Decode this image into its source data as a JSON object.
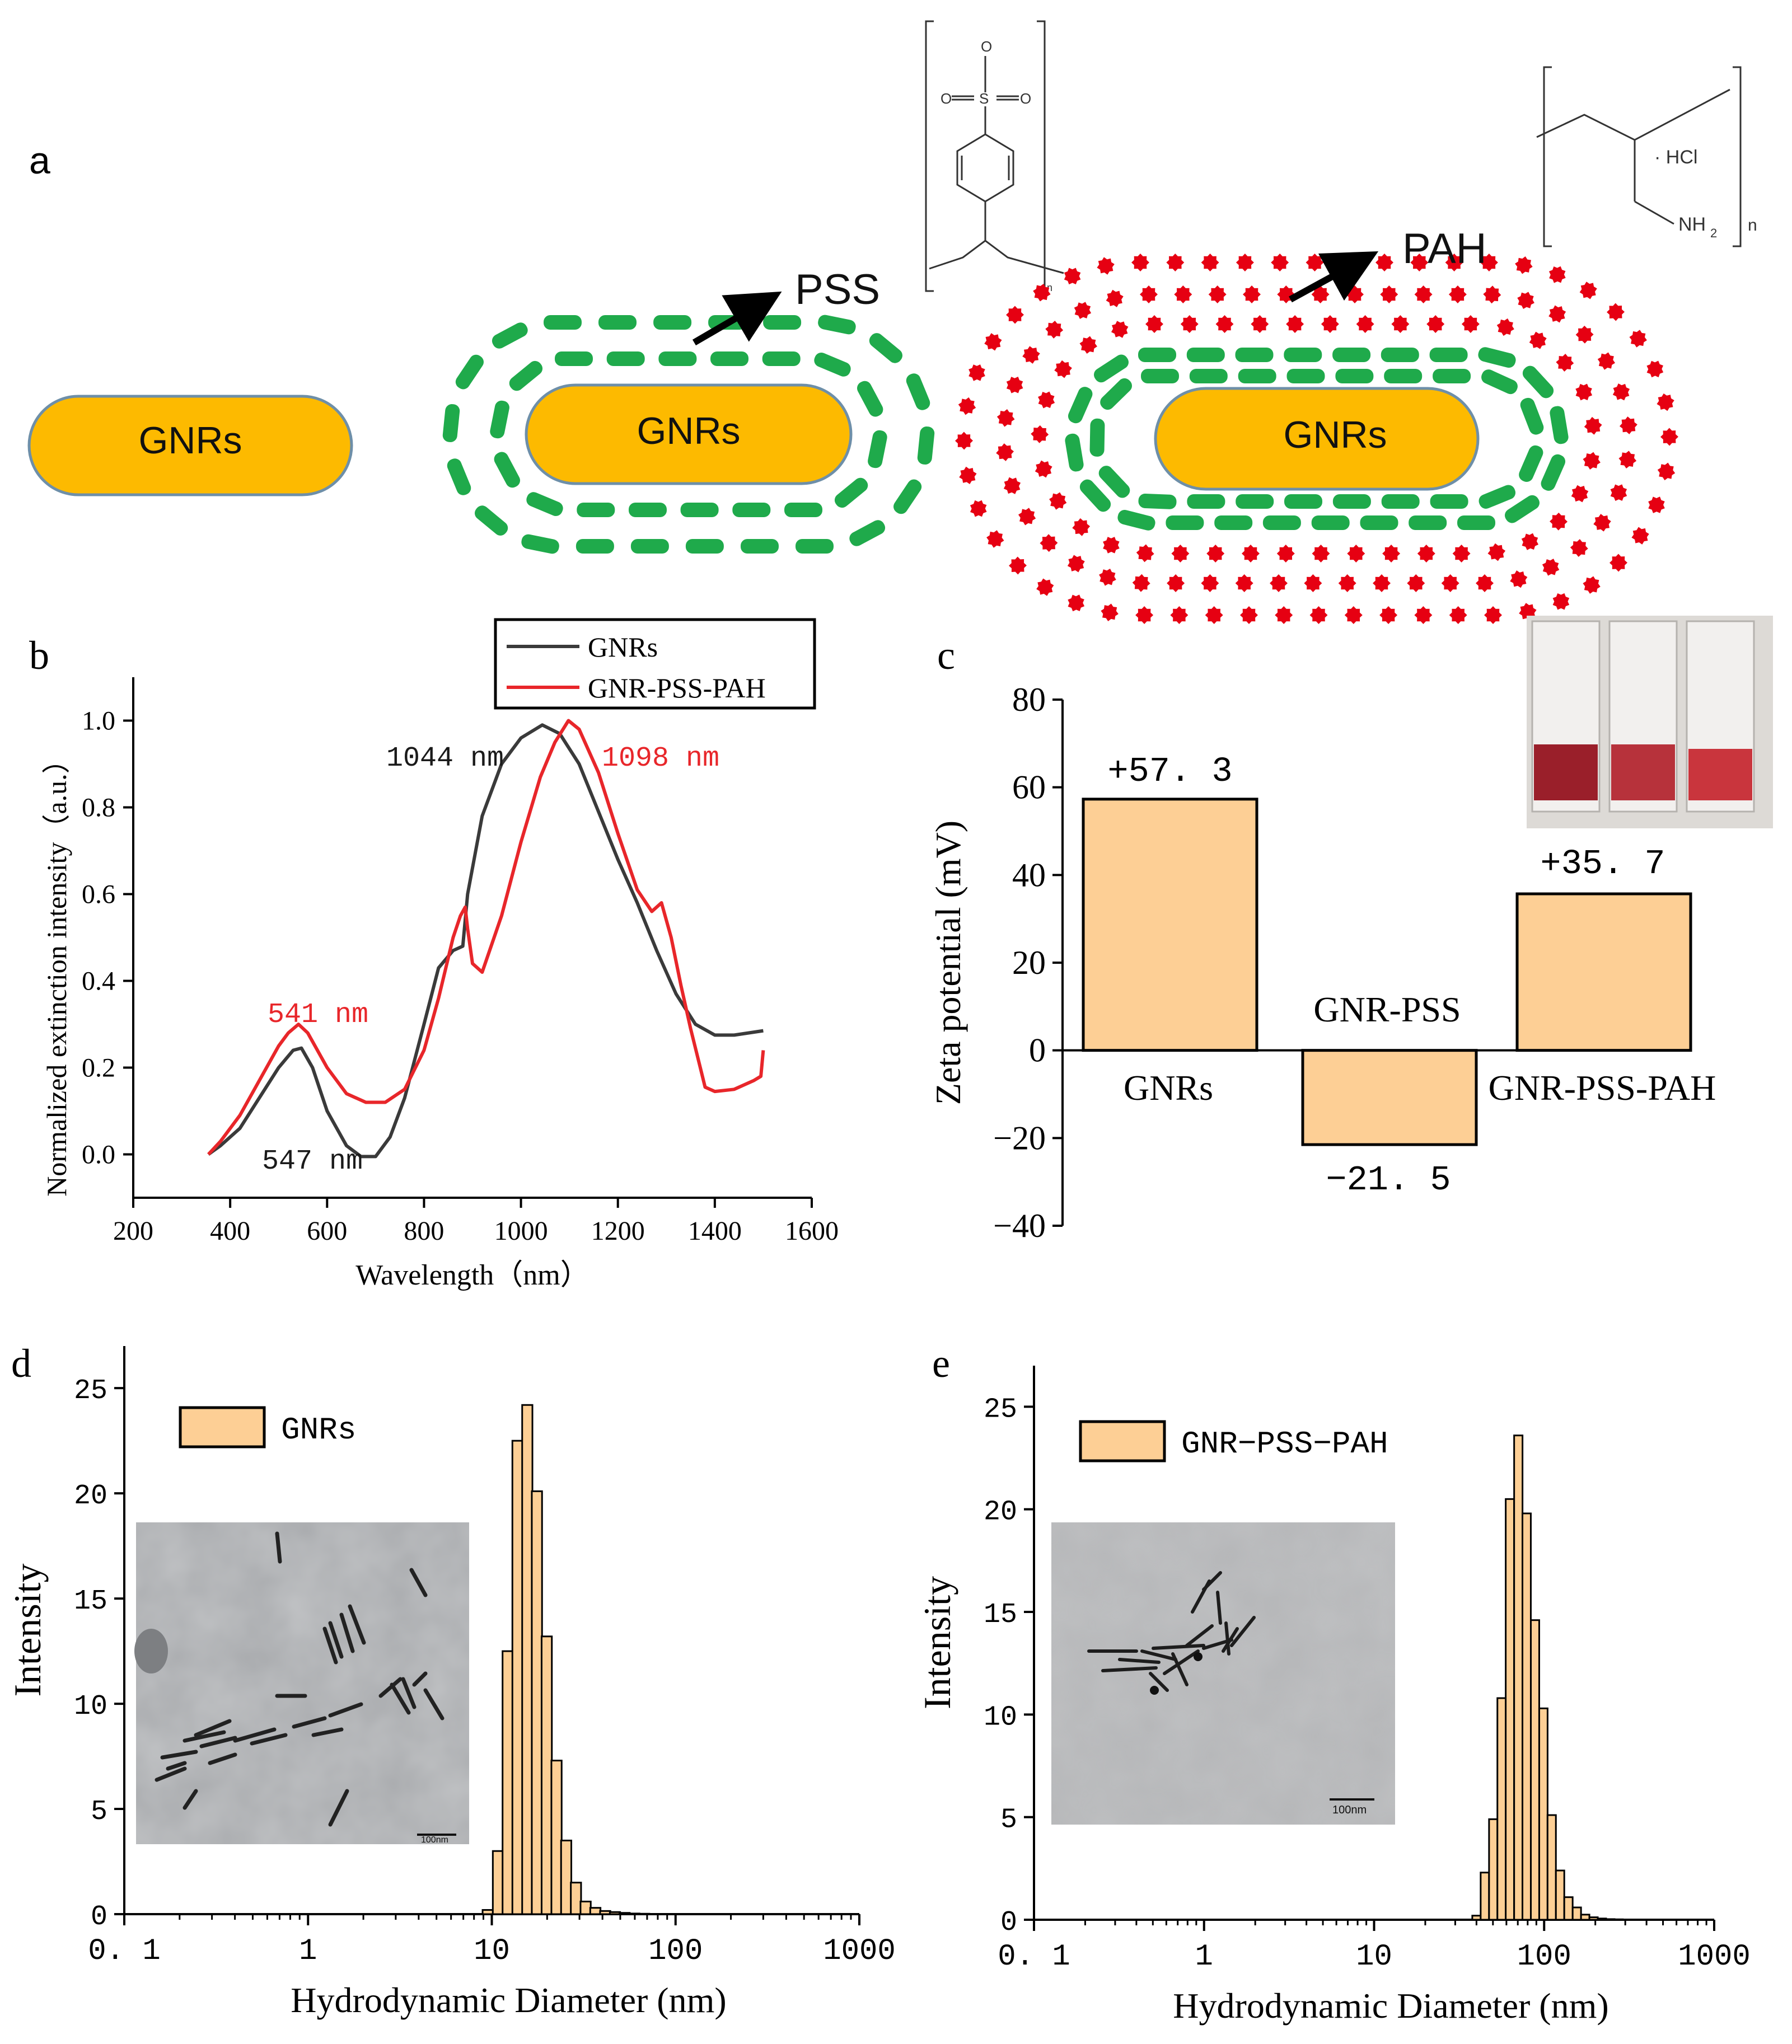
{
  "panel_a": {
    "label": "a",
    "particle_labels": [
      "GNRs",
      "GNRs",
      "GNRs"
    ],
    "pss_label": "PSS",
    "pah_label": "PAH",
    "pss_formula": {
      "sulfonate": "O",
      "s_atom": "S",
      "oxygen_left": "O",
      "oxygen_right": "O",
      "repeat": "n"
    },
    "pah_formula": {
      "hcl": "· HCl",
      "amine": "NH",
      "amine_sub": "2",
      "repeat": "n"
    },
    "colors": {
      "gold": "#FDBA00",
      "gold_edge": "#6E8FA8",
      "pss": "#1FAA4B",
      "pah": "#E60012"
    }
  },
  "chart_data": [
    {
      "panel": "b",
      "type": "line",
      "title": "",
      "xlabel": "Wavelength（nm）",
      "ylabel": "Normalized extinction intensity（a.u.）",
      "xlim": [
        200,
        1600
      ],
      "ylim": [
        -0.1,
        1.1
      ],
      "xticks": [
        200,
        400,
        600,
        800,
        1000,
        1200,
        1400,
        1600
      ],
      "yticks": [
        0.0,
        0.2,
        0.4,
        0.6,
        0.8,
        1.0
      ],
      "xtick_labels": [
        "200",
        "400",
        "600",
        "800",
        "1000",
        "1200",
        "1400",
        "1600"
      ],
      "ytick_labels": [
        "0.0",
        "0.2",
        "0.4",
        "0.6",
        "0.8",
        "1.0"
      ],
      "legend": {
        "position": "top",
        "entries": [
          "GNRs",
          "GNR-PSS-PAH"
        ]
      },
      "series": [
        {
          "name": "GNRs",
          "color": "#3a3a3a",
          "x": [
            355,
            380,
            420,
            460,
            500,
            530,
            547,
            570,
            600,
            640,
            670,
            700,
            730,
            760,
            800,
            830,
            860,
            880,
            890,
            920,
            960,
            1000,
            1044,
            1080,
            1120,
            1160,
            1200,
            1240,
            1280,
            1320,
            1360,
            1400,
            1440,
            1500
          ],
          "y": [
            0.0,
            0.02,
            0.06,
            0.13,
            0.2,
            0.24,
            0.245,
            0.2,
            0.1,
            0.02,
            -0.005,
            -0.005,
            0.04,
            0.13,
            0.3,
            0.43,
            0.47,
            0.48,
            0.6,
            0.78,
            0.9,
            0.96,
            0.99,
            0.97,
            0.9,
            0.79,
            0.68,
            0.58,
            0.47,
            0.37,
            0.3,
            0.275,
            0.275,
            0.285
          ]
        },
        {
          "name": "GNR-PSS-PAH",
          "color": "#e8262a",
          "x": [
            355,
            380,
            420,
            460,
            500,
            520,
            541,
            560,
            600,
            640,
            680,
            720,
            760,
            800,
            830,
            860,
            875,
            885,
            890,
            900,
            920,
            960,
            1000,
            1040,
            1070,
            1098,
            1120,
            1160,
            1200,
            1240,
            1270,
            1290,
            1310,
            1330,
            1350,
            1370,
            1380,
            1400,
            1440,
            1480,
            1495,
            1500
          ],
          "y": [
            0.0,
            0.03,
            0.09,
            0.17,
            0.25,
            0.28,
            0.3,
            0.28,
            0.2,
            0.14,
            0.12,
            0.12,
            0.15,
            0.24,
            0.36,
            0.5,
            0.55,
            0.57,
            0.52,
            0.44,
            0.42,
            0.55,
            0.72,
            0.87,
            0.95,
            1.0,
            0.98,
            0.88,
            0.74,
            0.61,
            0.56,
            0.58,
            0.5,
            0.39,
            0.29,
            0.2,
            0.155,
            0.145,
            0.15,
            0.17,
            0.18,
            0.24
          ]
        }
      ],
      "annotations": [
        {
          "text": "1044 nm",
          "color": "#1a1a1a"
        },
        {
          "text": "1098 nm",
          "color": "#e8262a"
        },
        {
          "text": "541 nm",
          "color": "#e8262a"
        },
        {
          "text": "547 nm",
          "color": "#1a1a1a"
        }
      ]
    },
    {
      "panel": "c",
      "type": "bar",
      "title": "",
      "xlabel": "",
      "ylabel": "Zeta potential (mV)",
      "ylim": [
        -40,
        80
      ],
      "yticks": [
        -40,
        -20,
        0,
        20,
        40,
        60,
        80
      ],
      "ytick_labels": [
        "−40",
        "−20",
        "0",
        "20",
        "40",
        "60",
        "80"
      ],
      "categories": [
        "GNRs",
        "GNR-PSS",
        "GNR-PSS-PAH"
      ],
      "values": [
        57.3,
        -21.5,
        35.7
      ],
      "value_labels": [
        "+57. 3",
        "−21. 5",
        "+35. 7"
      ],
      "bar_color": "#FDCF95"
    },
    {
      "panel": "d",
      "type": "bar",
      "title": "",
      "xlabel": "Hydrodynamic Diameter (nm)",
      "ylabel": "Intensity",
      "xscale": "log",
      "xlim": [
        0.1,
        1000
      ],
      "ylim": [
        0,
        27
      ],
      "xticks": [
        0.1,
        1,
        10,
        100,
        1000
      ],
      "xtick_labels": [
        "0. 1",
        "1",
        "10",
        "100",
        "1000"
      ],
      "yticks": [
        0,
        5,
        10,
        15,
        20,
        25
      ],
      "ytick_labels": [
        "0",
        "5",
        "10",
        "15",
        "20",
        "25"
      ],
      "legend": {
        "position": "top-left",
        "entries": [
          "GNRs"
        ]
      },
      "inset": {
        "type": "TEM image",
        "scale_bar": "100nm",
        "position": "left"
      },
      "x": [
        9.5,
        10.8,
        12.2,
        13.8,
        15.6,
        17.6,
        19.9,
        22.5,
        25.4,
        28.7,
        32.4,
        36.6,
        41.4,
        46.8,
        52.8,
        59.7,
        67.5
      ],
      "values": [
        0.2,
        3.0,
        12.5,
        22.5,
        24.2,
        20.1,
        13.2,
        7.3,
        3.5,
        1.5,
        0.6,
        0.3,
        0.15,
        0.1,
        0.06,
        0.03,
        0.02
      ],
      "bar_color": "#FDCF95"
    },
    {
      "panel": "e",
      "type": "bar",
      "title": "",
      "xlabel": "Hydrodynamic Diameter (nm)",
      "ylabel": "Intensity",
      "xscale": "log",
      "xlim": [
        0.1,
        1000
      ],
      "ylim": [
        0,
        27
      ],
      "xticks": [
        0.1,
        1,
        10,
        100,
        1000
      ],
      "xtick_labels": [
        "0. 1",
        "1",
        "10",
        "100",
        "1000"
      ],
      "yticks": [
        0,
        5,
        10,
        15,
        20,
        25
      ],
      "ytick_labels": [
        "0",
        "5",
        "10",
        "15",
        "20",
        "25"
      ],
      "legend": {
        "position": "top-left",
        "entries": [
          "GNR−PSS−PAH"
        ]
      },
      "inset": {
        "type": "TEM image",
        "scale_bar": "100nm",
        "position": "left"
      },
      "x": [
        40.0,
        44.8,
        50.2,
        56.2,
        62.9,
        70.5,
        78.9,
        88.4,
        99.0,
        110.8,
        124.1,
        139.0,
        155.7,
        174.4,
        195.3,
        218.7,
        245.0,
        274.3
      ],
      "values": [
        0.2,
        2.3,
        4.9,
        10.8,
        20.5,
        23.6,
        19.8,
        14.6,
        10.3,
        5.1,
        2.4,
        1.1,
        0.6,
        0.25,
        0.12,
        0.06,
        0.03,
        0.02
      ],
      "bar_color": "#FDCF95"
    }
  ],
  "panel_labels": {
    "b": "b",
    "c": "c",
    "d": "d",
    "e": "e"
  }
}
